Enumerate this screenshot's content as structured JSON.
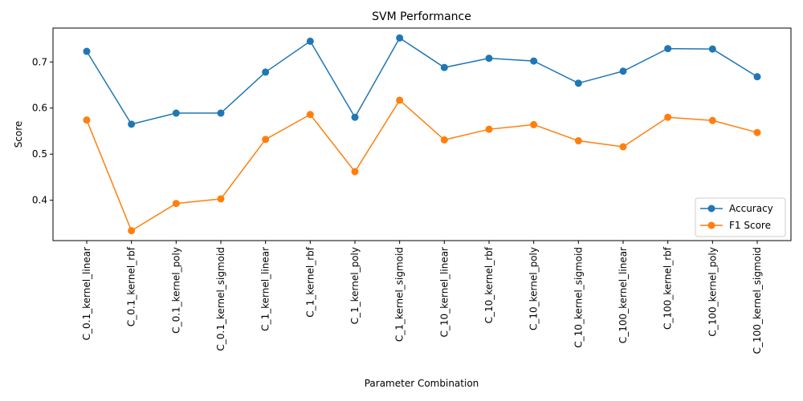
{
  "chart_data": {
    "type": "line",
    "title": "SVM Performance",
    "xlabel": "Parameter Combination",
    "ylabel": "Score",
    "categories": [
      "C_0.1_kernel_linear",
      "C_0.1_kernel_rbf",
      "C_0.1_kernel_poly",
      "C_0.1_kernel_sigmoid",
      "C_1_kernel_linear",
      "C_1_kernel_rbf",
      "C_1_kernel_poly",
      "C_1_kernel_sigmoid",
      "C_10_kernel_linear",
      "C_10_kernel_rbf",
      "C_10_kernel_poly",
      "C_10_kernel_sigmoid",
      "C_100_kernel_linear",
      "C_100_kernel_rbf",
      "C_100_kernel_poly",
      "C_100_kernel_sigmoid"
    ],
    "series": [
      {
        "name": "Accuracy",
        "color": "#1f77b4",
        "values": [
          0.723,
          0.565,
          0.589,
          0.589,
          0.678,
          0.745,
          0.58,
          0.752,
          0.688,
          0.708,
          0.702,
          0.654,
          0.68,
          0.729,
          0.728,
          0.668
        ]
      },
      {
        "name": "F1 Score",
        "color": "#ff7f0e",
        "values": [
          0.574,
          0.334,
          0.393,
          0.403,
          0.532,
          0.586,
          0.462,
          0.617,
          0.531,
          0.554,
          0.564,
          0.529,
          0.516,
          0.58,
          0.573,
          0.547
        ]
      }
    ],
    "yticks": [
      "0.4",
      "0.5",
      "0.6",
      "0.7"
    ],
    "ylim": [
      0.3125,
      0.7735
    ],
    "grid": false,
    "legend_position": "lower-right"
  }
}
